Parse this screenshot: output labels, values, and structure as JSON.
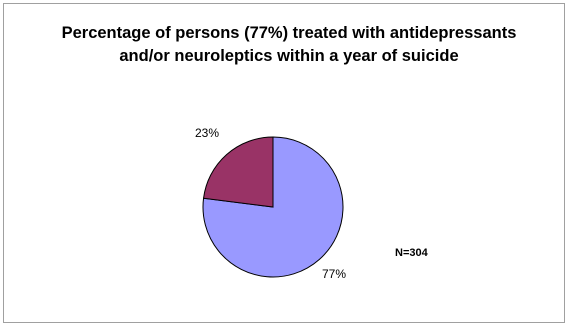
{
  "chart_data": {
    "type": "pie",
    "title": "Percentage of persons (77%) treated with antidepressants and/or neuroleptics within a year of suicide",
    "slices": [
      {
        "label": "77%",
        "value": 77,
        "color": "#9999ff"
      },
      {
        "label": "23%",
        "value": 23,
        "color": "#993366"
      }
    ],
    "annotations": [
      "N=304"
    ],
    "legend": "none"
  }
}
